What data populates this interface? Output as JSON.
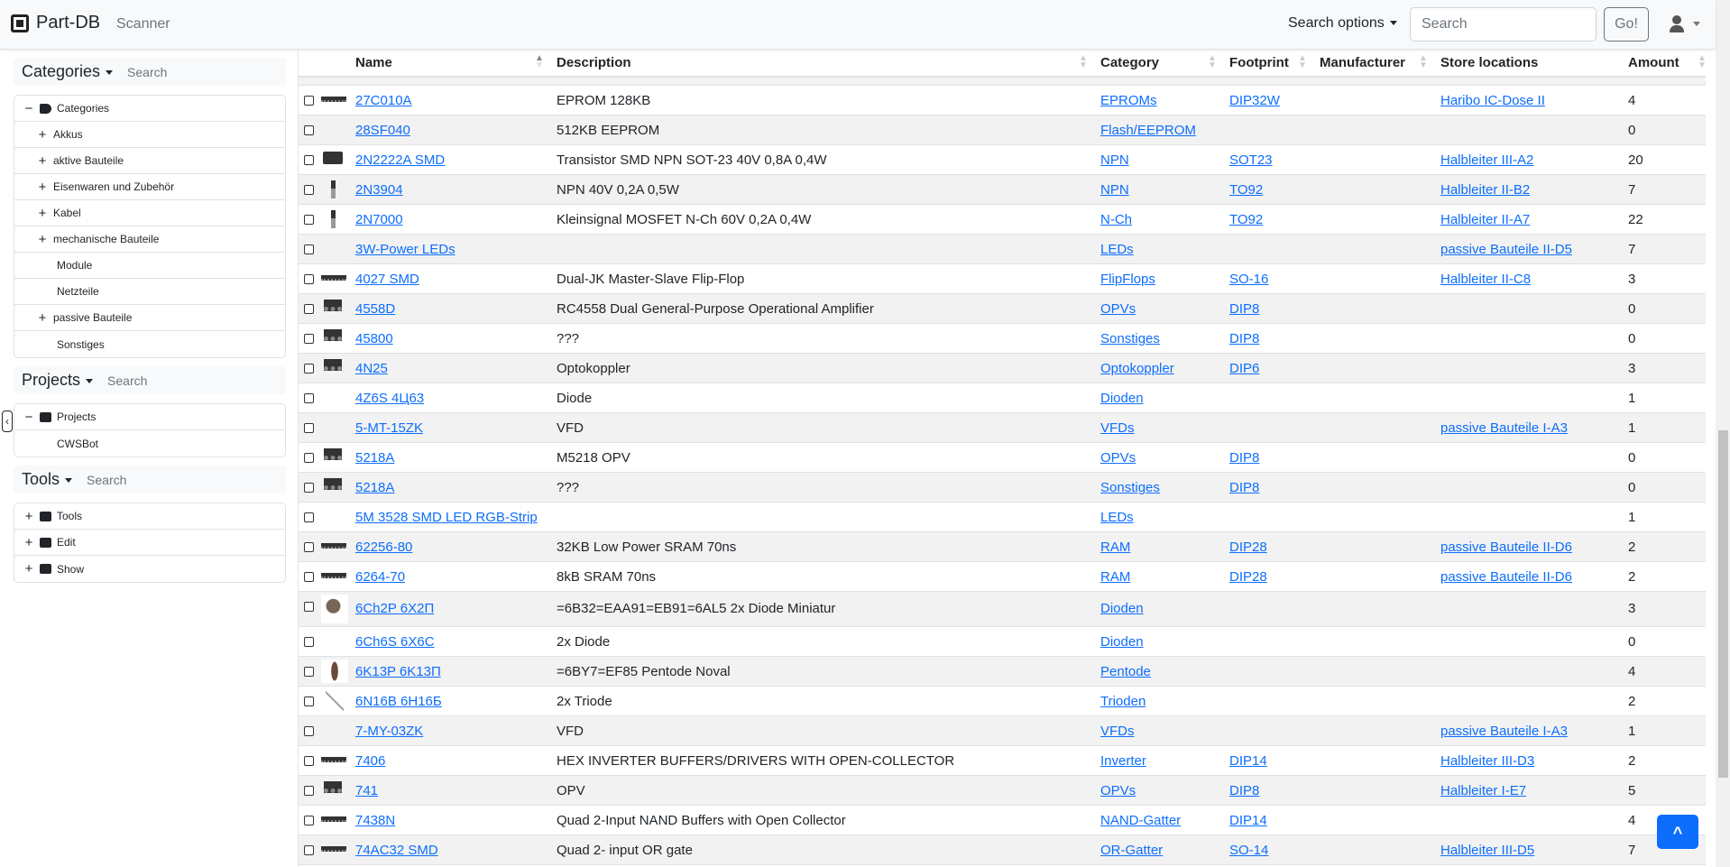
{
  "navbar": {
    "brand": "Part-DB",
    "scanner": "Scanner",
    "search_options": "Search options",
    "search_placeholder": "Search",
    "go": "Go!"
  },
  "sidebar": {
    "search_placeholder": "Search",
    "categories": {
      "title": "Categories",
      "root": "Categories",
      "items": [
        {
          "label": "Akkus",
          "expandable": true
        },
        {
          "label": "aktive Bauteile",
          "expandable": true
        },
        {
          "label": "Eisenwaren und Zubehör",
          "expandable": true
        },
        {
          "label": "Kabel",
          "expandable": true
        },
        {
          "label": "mechanische Bauteile",
          "expandable": true
        },
        {
          "label": "Module",
          "expandable": false
        },
        {
          "label": "Netzteile",
          "expandable": false
        },
        {
          "label": "passive Bauteile",
          "expandable": true
        },
        {
          "label": "Sonstiges",
          "expandable": false
        }
      ]
    },
    "projects": {
      "title": "Projects",
      "root": "Projects",
      "items": [
        {
          "label": "CWSBot"
        }
      ]
    },
    "tools": {
      "title": "Tools",
      "items": [
        {
          "label": "Tools",
          "icon": "toolbox-icon"
        },
        {
          "label": "Edit",
          "icon": "edit-icon"
        },
        {
          "label": "Show",
          "icon": "eye-icon"
        }
      ]
    }
  },
  "table": {
    "columns": [
      "Name",
      "Description",
      "Category",
      "Footprint",
      "Manufacturer",
      "Store locations",
      "Amount"
    ],
    "rows": [
      {
        "image": "dip-long",
        "name": "27C010A",
        "description": "EPROM 128KB",
        "category": "EPROMs",
        "footprint": "DIP32W",
        "manufacturer": "",
        "location": "Haribo IC-Dose II",
        "amount": "4"
      },
      {
        "image": "",
        "name": "28SF040",
        "description": "512KB EEPROM",
        "category": "Flash/EEPROM",
        "footprint": "",
        "manufacturer": "",
        "location": "",
        "amount": "0"
      },
      {
        "image": "sot23",
        "name": "2N2222A SMD",
        "description": "Transistor SMD NPN SOT-23 40V 0,8A 0,4W",
        "category": "NPN",
        "footprint": "SOT23",
        "manufacturer": "",
        "location": "Halbleiter III-A2",
        "amount": "20"
      },
      {
        "image": "to92",
        "name": "2N3904",
        "description": "NPN 40V 0,2A 0,5W",
        "category": "NPN",
        "footprint": "TO92",
        "manufacturer": "",
        "location": "Halbleiter II-B2",
        "amount": "7"
      },
      {
        "image": "to92",
        "name": "2N7000",
        "description": "Kleinsignal MOSFET N-Ch 60V 0,2A 0,4W",
        "category": "N-Ch",
        "footprint": "TO92",
        "manufacturer": "",
        "location": "Halbleiter II-A7",
        "amount": "22"
      },
      {
        "image": "",
        "name": "3W-Power LEDs",
        "description": "",
        "category": "LEDs",
        "footprint": "",
        "manufacturer": "",
        "location": "passive Bauteile II-D5",
        "amount": "7"
      },
      {
        "image": "dip-long",
        "name": "4027 SMD",
        "description": "Dual-JK Master-Slave Flip-Flop",
        "category": "FlipFlops",
        "footprint": "SO-16",
        "manufacturer": "",
        "location": "Halbleiter II-C8",
        "amount": "3"
      },
      {
        "image": "dip8",
        "name": "4558D",
        "description": "RC4558 Dual General-Purpose Operational Amplifier",
        "category": "OPVs",
        "footprint": "DIP8",
        "manufacturer": "",
        "location": "",
        "amount": "0"
      },
      {
        "image": "dip8",
        "name": "45800",
        "description": "???",
        "category": "Sonstiges",
        "footprint": "DIP8",
        "manufacturer": "",
        "location": "",
        "amount": "0"
      },
      {
        "image": "dip8",
        "name": "4N25",
        "description": "Optokoppler",
        "category": "Optokoppler",
        "footprint": "DIP6",
        "manufacturer": "",
        "location": "",
        "amount": "3"
      },
      {
        "image": "",
        "name": "4Z6S 4Ц63",
        "description": "Diode",
        "category": "Dioden",
        "footprint": "",
        "manufacturer": "",
        "location": "",
        "amount": "1"
      },
      {
        "image": "",
        "name": "5-MT-15ZK",
        "description": "VFD",
        "category": "VFDs",
        "footprint": "",
        "manufacturer": "",
        "location": "passive Bauteile I-A3",
        "amount": "1"
      },
      {
        "image": "dip8",
        "name": "5218A",
        "description": "M5218 OPV",
        "category": "OPVs",
        "footprint": "DIP8",
        "manufacturer": "",
        "location": "",
        "amount": "0"
      },
      {
        "image": "dip8",
        "name": "5218A",
        "description": "???",
        "category": "Sonstiges",
        "footprint": "DIP8",
        "manufacturer": "",
        "location": "",
        "amount": "0"
      },
      {
        "image": "",
        "name": "5M 3528 SMD LED RGB-Strip",
        "description": "",
        "category": "LEDs",
        "footprint": "",
        "manufacturer": "",
        "location": "",
        "amount": "1"
      },
      {
        "image": "dip-long",
        "name": "62256-80",
        "description": "32KB Low Power SRAM 70ns",
        "category": "RAM",
        "footprint": "DIP28",
        "manufacturer": "",
        "location": "passive Bauteile II-D6",
        "amount": "2"
      },
      {
        "image": "dip-long",
        "name": "6264-70",
        "description": "8kB SRAM 70ns",
        "category": "RAM",
        "footprint": "DIP28",
        "manufacturer": "",
        "location": "passive Bauteile II-D6",
        "amount": "2"
      },
      {
        "image": "photo",
        "name": "6Ch2P 6X2П",
        "description": "=6B32=EAA91=EB91=6AL5 2x Diode Miniatur",
        "category": "Dioden",
        "footprint": "",
        "manufacturer": "",
        "location": "",
        "amount": "3"
      },
      {
        "image": "",
        "name": "6Ch6S 6X6C",
        "description": "2x Diode",
        "category": "Dioden",
        "footprint": "",
        "manufacturer": "",
        "location": "",
        "amount": "0"
      },
      {
        "image": "tube",
        "name": "6K13P 6K13П",
        "description": "=6BY7=EF85 Pentode Noval",
        "category": "Pentode",
        "footprint": "",
        "manufacturer": "",
        "location": "",
        "amount": "4"
      },
      {
        "image": "wire",
        "name": "6N16B 6H16Б",
        "description": "2x Triode",
        "category": "Trioden",
        "footprint": "",
        "manufacturer": "",
        "location": "",
        "amount": "2"
      },
      {
        "image": "",
        "name": "7-MY-03ZK",
        "description": "VFD",
        "category": "VFDs",
        "footprint": "",
        "manufacturer": "",
        "location": "passive Bauteile I-A3",
        "amount": "1"
      },
      {
        "image": "dip-long",
        "name": "7406",
        "description": "HEX INVERTER BUFFERS/DRIVERS WITH OPEN-COLLECTOR",
        "category": "Inverter",
        "footprint": "DIP14",
        "manufacturer": "",
        "location": "Halbleiter III-D3",
        "amount": "2"
      },
      {
        "image": "dip8",
        "name": "741",
        "description": "OPV",
        "category": "OPVs",
        "footprint": "DIP8",
        "manufacturer": "",
        "location": "Halbleiter I-E7",
        "amount": "5"
      },
      {
        "image": "dip-long",
        "name": "7438N",
        "description": "Quad 2-Input NAND Buffers with Open Collector",
        "category": "NAND-Gatter",
        "footprint": "DIP14",
        "manufacturer": "",
        "location": "",
        "amount": "4"
      },
      {
        "image": "dip-long",
        "name": "74AC32 SMD",
        "description": "Quad 2- input OR gate",
        "category": "OR-Gatter",
        "footprint": "SO-14",
        "manufacturer": "",
        "location": "Halbleiter III-D5",
        "amount": "7"
      }
    ]
  },
  "colors": {
    "link": "#0d6efd",
    "stripe": "#f2f2f2",
    "accent": "#0d6efd"
  }
}
